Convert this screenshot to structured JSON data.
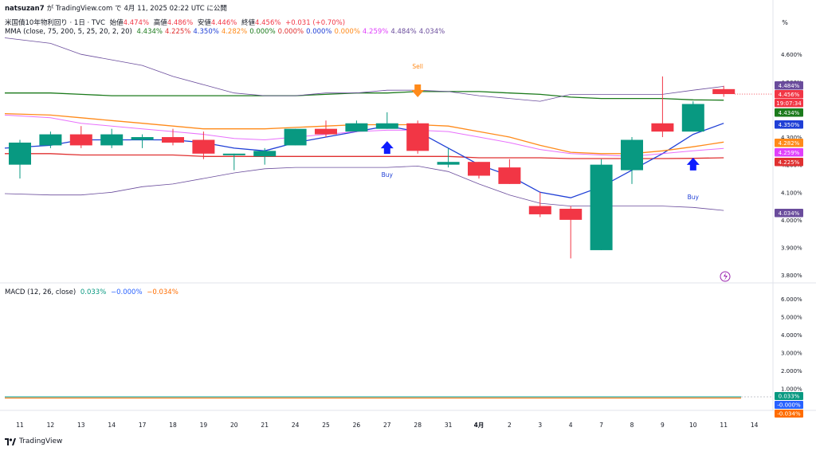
{
  "publish": {
    "user": "natsuzan7",
    "text1": "が TradingView.com で",
    "date": "4月 11, 2025 02:22 UTC に公開"
  },
  "legend": {
    "title": "米国債10年物利回り · 1日 · TVC",
    "open_lbl": "始値",
    "open": "4.474%",
    "high_lbl": "高値",
    "high": "4.486%",
    "low_lbl": "安値",
    "low": "4.446%",
    "close_lbl": "終値",
    "close": "4.456%",
    "change": "+0.031 (+0.70%)"
  },
  "mma": {
    "label": "MMA (close, 75, 200, 5, 25, 20, 2, 20)",
    "values": [
      "4.434%",
      "4.225%",
      "4.350%",
      "4.282%",
      "0.000%",
      "0.000%",
      "0.000%",
      "0.000%",
      "4.259%",
      "4.484%",
      "4.034%"
    ],
    "colors": [
      "#1b7a1b",
      "#e03030",
      "#1f3fd6",
      "#ff8a1a",
      "#1b7a1b",
      "#e03030",
      "#1f3fd6",
      "#ff8a1a",
      "#e040fb",
      "#6a4c9c",
      "#6a4c9c"
    ]
  },
  "macd": {
    "label": "MACD (12, 26, close)",
    "v1": "0.033%",
    "v2": "−0.000%",
    "v3": "−0.034%"
  },
  "pct_btn": "%",
  "brand": "TradingView",
  "price_axis": {
    "ticks": [
      "4.600%",
      "4.500%",
      "4.300%",
      "4.200%",
      "4.100%",
      "4.000%",
      "3.900%",
      "3.800%"
    ],
    "badges": [
      {
        "text": "4.484%",
        "color": "#6a4c9c"
      },
      {
        "text": "4.456%",
        "color": "#f23645"
      },
      {
        "text": "19:07:34",
        "color": "#f23645"
      },
      {
        "text": "4.434%",
        "color": "#1b7a1b"
      },
      {
        "text": "4.350%",
        "color": "#1f3fd6"
      },
      {
        "text": "4.282%",
        "color": "#ff8a1a"
      },
      {
        "text": "4.259%",
        "color": "#e040fb"
      },
      {
        "text": "4.225%",
        "color": "#e03030"
      },
      {
        "text": "4.034%",
        "color": "#6a4c9c"
      }
    ]
  },
  "macd_axis": {
    "ticks": [
      "6.000%",
      "5.000%",
      "4.000%",
      "3.000%",
      "2.000%",
      "1.000%"
    ],
    "badges": [
      {
        "text": "0.033%",
        "color": "#089981"
      },
      {
        "text": "-0.000%",
        "color": "#2962ff"
      },
      {
        "text": "-0.034%",
        "color": "#ff6d00"
      }
    ]
  },
  "x_axis": {
    "labels": [
      "11",
      "12",
      "13",
      "14",
      "17",
      "18",
      "19",
      "20",
      "21",
      "24",
      "25",
      "26",
      "27",
      "28",
      "31",
      "4月",
      "2",
      "3",
      "4",
      "7",
      "8",
      "9",
      "10",
      "11",
      "14"
    ]
  },
  "annotations": {
    "sell": "Sell",
    "buy1": "Buy",
    "buy2": "Buy"
  },
  "chart_data": {
    "type": "candlestick",
    "title": "米国債10年物利回り · 1日 · TVC",
    "ylim": [
      3.78,
      4.67
    ],
    "categories": [
      "11",
      "12",
      "13",
      "14",
      "17",
      "18",
      "19",
      "20",
      "21",
      "24",
      "25",
      "26",
      "27",
      "28",
      "31",
      "4月",
      "2",
      "3",
      "4",
      "7",
      "8",
      "9",
      "10",
      "11"
    ],
    "candles": [
      {
        "o": 4.2,
        "h": 4.29,
        "l": 4.15,
        "c": 4.28
      },
      {
        "o": 4.27,
        "h": 4.32,
        "l": 4.26,
        "c": 4.31
      },
      {
        "o": 4.31,
        "h": 4.34,
        "l": 4.26,
        "c": 4.27
      },
      {
        "o": 4.27,
        "h": 4.33,
        "l": 4.26,
        "c": 4.31
      },
      {
        "o": 4.29,
        "h": 4.31,
        "l": 4.26,
        "c": 4.3
      },
      {
        "o": 4.3,
        "h": 4.33,
        "l": 4.27,
        "c": 4.28
      },
      {
        "o": 4.29,
        "h": 4.32,
        "l": 4.22,
        "c": 4.24
      },
      {
        "o": 4.24,
        "h": 4.24,
        "l": 4.18,
        "c": 4.24
      },
      {
        "o": 4.23,
        "h": 4.26,
        "l": 4.2,
        "c": 4.25
      },
      {
        "o": 4.27,
        "h": 4.33,
        "l": 4.27,
        "c": 4.33
      },
      {
        "o": 4.33,
        "h": 4.36,
        "l": 4.3,
        "c": 4.31
      },
      {
        "o": 4.32,
        "h": 4.36,
        "l": 4.32,
        "c": 4.35
      },
      {
        "o": 4.33,
        "h": 4.39,
        "l": 4.33,
        "c": 4.35
      },
      {
        "o": 4.35,
        "h": 4.36,
        "l": 4.24,
        "c": 4.25
      },
      {
        "o": 4.2,
        "h": 4.26,
        "l": 4.19,
        "c": 4.21
      },
      {
        "o": 4.21,
        "h": 4.21,
        "l": 4.15,
        "c": 4.16
      },
      {
        "o": 4.19,
        "h": 4.22,
        "l": 4.13,
        "c": 4.13
      },
      {
        "o": 4.05,
        "h": 4.1,
        "l": 4.01,
        "c": 4.02
      },
      {
        "o": 4.04,
        "h": 4.05,
        "l": 3.86,
        "c": 4.0
      },
      {
        "o": 3.89,
        "h": 4.22,
        "l": 3.89,
        "c": 4.2
      },
      {
        "o": 4.18,
        "h": 4.3,
        "l": 4.13,
        "c": 4.29
      },
      {
        "o": 4.35,
        "h": 4.52,
        "l": 4.3,
        "c": 4.32
      },
      {
        "o": 4.32,
        "h": 4.43,
        "l": 4.32,
        "c": 4.42
      },
      {
        "o": 4.474,
        "h": 4.486,
        "l": 4.446,
        "c": 4.456
      }
    ],
    "series": [
      {
        "name": "MMA 75",
        "color": "#1b7a1b",
        "values": [
          4.46,
          4.46,
          4.455,
          4.45,
          4.45,
          4.45,
          4.45,
          4.45,
          4.45,
          4.45,
          4.455,
          4.46,
          4.46,
          4.465,
          4.465,
          4.465,
          4.46,
          4.455,
          4.445,
          4.44,
          4.44,
          4.44,
          4.435,
          4.434
        ]
      },
      {
        "name": "MMA 200",
        "color": "#e03030",
        "values": [
          4.24,
          4.24,
          4.235,
          4.235,
          4.235,
          4.235,
          4.23,
          4.23,
          4.23,
          4.23,
          4.23,
          4.23,
          4.23,
          4.23,
          4.23,
          4.225,
          4.225,
          4.225,
          4.222,
          4.222,
          4.222,
          4.222,
          4.223,
          4.225
        ]
      },
      {
        "name": "MMA 5",
        "color": "#1f3fd6",
        "values": [
          4.26,
          4.27,
          4.29,
          4.29,
          4.29,
          4.29,
          4.28,
          4.26,
          4.25,
          4.28,
          4.3,
          4.32,
          4.34,
          4.32,
          4.26,
          4.2,
          4.16,
          4.1,
          4.08,
          4.12,
          4.18,
          4.24,
          4.31,
          4.35
        ]
      },
      {
        "name": "MMA 25",
        "color": "#ff8a1a",
        "values": [
          4.385,
          4.38,
          4.37,
          4.36,
          4.35,
          4.34,
          4.33,
          4.33,
          4.33,
          4.335,
          4.34,
          4.345,
          4.345,
          4.345,
          4.34,
          4.32,
          4.3,
          4.27,
          4.245,
          4.24,
          4.24,
          4.25,
          4.265,
          4.282
        ]
      },
      {
        "name": "BB basis",
        "color": "#e040fb",
        "values": [
          4.38,
          4.37,
          4.35,
          4.34,
          4.33,
          4.32,
          4.31,
          4.295,
          4.29,
          4.3,
          4.31,
          4.32,
          4.325,
          4.325,
          4.32,
          4.3,
          4.28,
          4.255,
          4.24,
          4.235,
          4.23,
          4.24,
          4.25,
          4.259
        ]
      },
      {
        "name": "BB upper",
        "color": "#6a4c9c",
        "values": [
          4.66,
          4.64,
          4.6,
          4.58,
          4.56,
          4.52,
          4.49,
          4.46,
          4.45,
          4.45,
          4.46,
          4.46,
          4.47,
          4.47,
          4.465,
          4.45,
          4.44,
          4.43,
          4.455,
          4.455,
          4.455,
          4.455,
          4.47,
          4.484
        ]
      },
      {
        "name": "BB lower",
        "color": "#6a4c9c",
        "values": [
          4.095,
          4.09,
          4.09,
          4.1,
          4.12,
          4.13,
          4.15,
          4.17,
          4.185,
          4.19,
          4.19,
          4.19,
          4.19,
          4.195,
          4.175,
          4.13,
          4.09,
          4.06,
          4.05,
          4.05,
          4.05,
          4.05,
          4.045,
          4.034
        ]
      }
    ],
    "markers": [
      {
        "label": "Sell",
        "index": 13,
        "dir": "down"
      },
      {
        "label": "Buy",
        "index": 12,
        "dir": "up"
      },
      {
        "label": "Buy",
        "index": 22,
        "dir": "up"
      }
    ],
    "macd": {
      "ylim": [
        0,
        6.5
      ],
      "ticks": [
        1,
        2,
        3,
        4,
        5,
        6
      ],
      "macd": 0.033,
      "signal": -0.0,
      "hist": -0.034
    }
  }
}
